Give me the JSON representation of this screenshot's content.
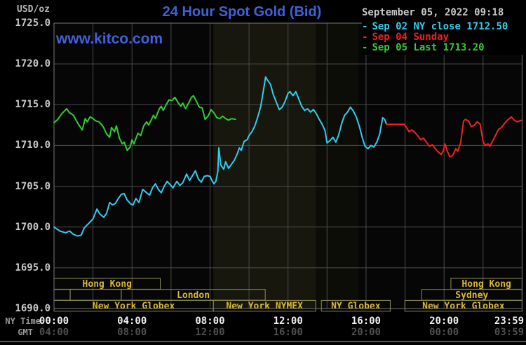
{
  "header": {
    "units_label": "USD/oz",
    "title": "24 Hour Spot Gold (Bid)",
    "watermark": "www.kitco.com"
  },
  "legend": {
    "timestamp": "September 05, 2022 09:18",
    "items": [
      {
        "marker": "-",
        "label": "Sep 02 NY close 1712.50",
        "color": "#33ccee"
      },
      {
        "marker": "-",
        "label": "Sep 04 Sunday",
        "color": "#ee2222"
      },
      {
        "marker": "-",
        "label": "Sep 05 Last 1713.20",
        "color": "#33cc33"
      }
    ]
  },
  "axis": {
    "ny_label": "NY Time",
    "gmt_label": "GMT",
    "y_ticks": [
      "1725.0",
      "1720.0",
      "1715.0",
      "1710.0",
      "1705.0",
      "1700.0",
      "1695.0",
      "1690.0"
    ],
    "y_tick_values": [
      1725,
      1720,
      1715,
      1710,
      1705,
      1700,
      1695,
      1690
    ],
    "x_ticks": [
      {
        "hour": 0,
        "ny": "00:00",
        "gmt": "04:00"
      },
      {
        "hour": 4,
        "ny": "04:00",
        "gmt": "08:00"
      },
      {
        "hour": 8,
        "ny": "08:00",
        "gmt": "12:00"
      },
      {
        "hour": 12,
        "ny": "12:00",
        "gmt": "16:00"
      },
      {
        "hour": 16,
        "ny": "16:00",
        "gmt": "20:00"
      },
      {
        "hour": 20,
        "ny": "20:00",
        "gmt": "00:00"
      },
      {
        "hour": 23.983,
        "ny": "23:59",
        "gmt": "03:59"
      }
    ]
  },
  "colors": {
    "title_blue": "#4161dd",
    "grid": "#4b4b4b",
    "plot_border": "#787878",
    "session_border": "#8e8e55",
    "session_text": "#d9b832",
    "nymex_band": "#17170e",
    "after_band": "#0d0d08"
  },
  "chart_data": {
    "type": "line",
    "title": "24 Hour Spot Gold (Bid)",
    "xlabel": "NY Time (00:00 - 23:59)",
    "ylabel": "USD/oz",
    "ylim": [
      1690,
      1725
    ],
    "xlim_hours": [
      0,
      24
    ],
    "grid": true,
    "legend_position": "top-right",
    "series": [
      {
        "name": "Sep 02 NY close 1712.50",
        "color": "#33ccee",
        "points": [
          [
            0.0,
            1700.0
          ],
          [
            0.3,
            1699.5
          ],
          [
            0.6,
            1699.3
          ],
          [
            0.8,
            1699.5
          ],
          [
            1.0,
            1699.1
          ],
          [
            1.2,
            1698.9
          ],
          [
            1.4,
            1699.0
          ],
          [
            1.55,
            1699.9
          ],
          [
            1.8,
            1700.5
          ],
          [
            2.0,
            1701.0
          ],
          [
            2.2,
            1702.2
          ],
          [
            2.35,
            1701.6
          ],
          [
            2.55,
            1701.2
          ],
          [
            2.7,
            1701.7
          ],
          [
            2.85,
            1703.0
          ],
          [
            3.0,
            1702.7
          ],
          [
            3.15,
            1702.9
          ],
          [
            3.3,
            1703.5
          ],
          [
            3.45,
            1704.0
          ],
          [
            3.6,
            1704.1
          ],
          [
            3.75,
            1703.3
          ],
          [
            3.95,
            1702.8
          ],
          [
            4.05,
            1702.7
          ],
          [
            4.2,
            1703.5
          ],
          [
            4.35,
            1703.0
          ],
          [
            4.55,
            1704.6
          ],
          [
            4.7,
            1704.3
          ],
          [
            4.9,
            1703.9
          ],
          [
            5.05,
            1704.8
          ],
          [
            5.2,
            1705.3
          ],
          [
            5.35,
            1704.6
          ],
          [
            5.5,
            1704.2
          ],
          [
            5.65,
            1705.0
          ],
          [
            5.8,
            1705.6
          ],
          [
            5.95,
            1705.2
          ],
          [
            6.1,
            1704.8
          ],
          [
            6.3,
            1705.6
          ],
          [
            6.45,
            1705.1
          ],
          [
            6.6,
            1705.4
          ],
          [
            6.8,
            1706.5
          ],
          [
            6.95,
            1705.7
          ],
          [
            7.1,
            1706.3
          ],
          [
            7.25,
            1706.9
          ],
          [
            7.4,
            1705.9
          ],
          [
            7.55,
            1705.5
          ],
          [
            7.7,
            1706.2
          ],
          [
            7.85,
            1706.3
          ],
          [
            8.0,
            1706.2
          ],
          [
            8.1,
            1705.7
          ],
          [
            8.2,
            1705.3
          ],
          [
            8.3,
            1705.6
          ],
          [
            8.4,
            1706.8
          ],
          [
            8.45,
            1709.7
          ],
          [
            8.55,
            1707.6
          ],
          [
            8.7,
            1707.1
          ],
          [
            8.8,
            1708.0
          ],
          [
            8.95,
            1707.2
          ],
          [
            9.1,
            1707.7
          ],
          [
            9.25,
            1708.2
          ],
          [
            9.4,
            1709.0
          ],
          [
            9.5,
            1709.7
          ],
          [
            9.6,
            1709.4
          ],
          [
            9.75,
            1710.5
          ],
          [
            9.9,
            1710.7
          ],
          [
            10.0,
            1711.2
          ],
          [
            10.15,
            1711.7
          ],
          [
            10.3,
            1712.4
          ],
          [
            10.45,
            1713.5
          ],
          [
            10.6,
            1714.8
          ],
          [
            10.75,
            1716.9
          ],
          [
            10.85,
            1718.4
          ],
          [
            10.95,
            1718.0
          ],
          [
            11.1,
            1717.5
          ],
          [
            11.25,
            1716.2
          ],
          [
            11.4,
            1715.3
          ],
          [
            11.55,
            1714.4
          ],
          [
            11.7,
            1714.7
          ],
          [
            11.85,
            1715.4
          ],
          [
            12.0,
            1716.4
          ],
          [
            12.1,
            1716.6
          ],
          [
            12.25,
            1716.1
          ],
          [
            12.4,
            1716.6
          ],
          [
            12.55,
            1715.7
          ],
          [
            12.7,
            1714.8
          ],
          [
            12.85,
            1714.3
          ],
          [
            13.0,
            1714.5
          ],
          [
            13.15,
            1714.1
          ],
          [
            13.3,
            1714.4
          ],
          [
            13.45,
            1713.9
          ],
          [
            13.6,
            1713.2
          ],
          [
            13.75,
            1712.6
          ],
          [
            13.9,
            1711.8
          ],
          [
            14.0,
            1710.3
          ],
          [
            14.15,
            1710.6
          ],
          [
            14.3,
            1711.0
          ],
          [
            14.45,
            1710.4
          ],
          [
            14.6,
            1711.3
          ],
          [
            14.75,
            1712.7
          ],
          [
            14.9,
            1713.7
          ],
          [
            15.05,
            1714.1
          ],
          [
            15.2,
            1714.7
          ],
          [
            15.35,
            1714.2
          ],
          [
            15.5,
            1713.5
          ],
          [
            15.65,
            1712.4
          ],
          [
            15.8,
            1711.0
          ],
          [
            15.95,
            1709.9
          ],
          [
            16.1,
            1709.6
          ],
          [
            16.25,
            1710.0
          ],
          [
            16.4,
            1709.8
          ],
          [
            16.55,
            1710.4
          ],
          [
            16.7,
            1711.4
          ],
          [
            16.85,
            1713.4
          ],
          [
            16.95,
            1713.2
          ],
          [
            17.05,
            1712.6
          ]
        ]
      },
      {
        "name": "Sep 04 Sunday",
        "color": "#ee2222",
        "points": [
          [
            17.05,
            1712.6
          ],
          [
            17.35,
            1712.6
          ],
          [
            17.65,
            1712.6
          ],
          [
            17.95,
            1712.6
          ],
          [
            18.05,
            1712.3
          ],
          [
            18.2,
            1711.7
          ],
          [
            18.35,
            1711.9
          ],
          [
            18.5,
            1711.6
          ],
          [
            18.65,
            1711.2
          ],
          [
            18.8,
            1710.7
          ],
          [
            18.95,
            1710.9
          ],
          [
            19.1,
            1710.4
          ],
          [
            19.25,
            1709.9
          ],
          [
            19.4,
            1710.1
          ],
          [
            19.55,
            1709.6
          ],
          [
            19.7,
            1709.2
          ],
          [
            19.85,
            1708.9
          ],
          [
            19.95,
            1709.3
          ],
          [
            20.05,
            1710.2
          ],
          [
            20.15,
            1709.4
          ],
          [
            20.3,
            1708.6
          ],
          [
            20.45,
            1708.8
          ],
          [
            20.6,
            1709.6
          ],
          [
            20.7,
            1709.3
          ],
          [
            20.85,
            1710.3
          ],
          [
            21.0,
            1713.0
          ],
          [
            21.1,
            1713.2
          ],
          [
            21.25,
            1713.0
          ],
          [
            21.4,
            1712.3
          ],
          [
            21.55,
            1712.5
          ],
          [
            21.7,
            1712.9
          ],
          [
            21.85,
            1712.6
          ],
          [
            22.0,
            1710.5
          ],
          [
            22.1,
            1710.0
          ],
          [
            22.25,
            1710.2
          ],
          [
            22.35,
            1709.9
          ],
          [
            22.5,
            1710.6
          ],
          [
            22.65,
            1711.3
          ],
          [
            22.8,
            1712.0
          ],
          [
            22.95,
            1712.2
          ],
          [
            23.1,
            1712.7
          ],
          [
            23.25,
            1713.1
          ],
          [
            23.45,
            1713.5
          ],
          [
            23.6,
            1713.1
          ],
          [
            23.75,
            1712.9
          ],
          [
            23.98,
            1713.1
          ]
        ]
      },
      {
        "name": "Sep 05 Last 1713.20",
        "color": "#33cc33",
        "points": [
          [
            0.0,
            1712.8
          ],
          [
            0.2,
            1713.2
          ],
          [
            0.4,
            1713.9
          ],
          [
            0.65,
            1714.5
          ],
          [
            0.8,
            1714.0
          ],
          [
            1.0,
            1713.7
          ],
          [
            1.2,
            1712.8
          ],
          [
            1.45,
            1711.9
          ],
          [
            1.6,
            1713.3
          ],
          [
            1.7,
            1712.9
          ],
          [
            1.85,
            1713.5
          ],
          [
            2.0,
            1713.3
          ],
          [
            2.15,
            1713.0
          ],
          [
            2.3,
            1712.9
          ],
          [
            2.5,
            1712.4
          ],
          [
            2.7,
            1711.4
          ],
          [
            2.85,
            1711.0
          ],
          [
            2.95,
            1712.2
          ],
          [
            3.1,
            1711.7
          ],
          [
            3.2,
            1712.4
          ],
          [
            3.35,
            1710.9
          ],
          [
            3.5,
            1710.2
          ],
          [
            3.6,
            1710.4
          ],
          [
            3.75,
            1709.4
          ],
          [
            3.9,
            1709.8
          ],
          [
            4.0,
            1710.7
          ],
          [
            4.1,
            1710.2
          ],
          [
            4.3,
            1711.5
          ],
          [
            4.45,
            1711.2
          ],
          [
            4.6,
            1712.4
          ],
          [
            4.75,
            1712.9
          ],
          [
            4.85,
            1712.5
          ],
          [
            5.0,
            1713.2
          ],
          [
            5.1,
            1713.7
          ],
          [
            5.2,
            1713.3
          ],
          [
            5.4,
            1714.5
          ],
          [
            5.5,
            1714.8
          ],
          [
            5.6,
            1714.3
          ],
          [
            5.75,
            1715.0
          ],
          [
            5.9,
            1715.6
          ],
          [
            6.05,
            1715.5
          ],
          [
            6.2,
            1715.9
          ],
          [
            6.35,
            1715.3
          ],
          [
            6.5,
            1714.8
          ],
          [
            6.6,
            1715.2
          ],
          [
            6.75,
            1714.5
          ],
          [
            6.9,
            1715.2
          ],
          [
            7.05,
            1715.9
          ],
          [
            7.15,
            1716.1
          ],
          [
            7.3,
            1715.4
          ],
          [
            7.45,
            1714.7
          ],
          [
            7.6,
            1714.6
          ],
          [
            7.75,
            1713.2
          ],
          [
            7.9,
            1713.6
          ],
          [
            8.05,
            1714.4
          ],
          [
            8.2,
            1714.0
          ],
          [
            8.35,
            1713.4
          ],
          [
            8.5,
            1713.3
          ],
          [
            8.65,
            1713.6
          ],
          [
            8.8,
            1713.3
          ],
          [
            8.95,
            1713.1
          ],
          [
            9.1,
            1713.3
          ],
          [
            9.3,
            1713.2
          ]
        ]
      }
    ],
    "sessions": [
      {
        "row": 0,
        "label": "Hong Kong",
        "start": 0,
        "end": 5.45
      },
      {
        "row": 0,
        "label": "Hong Kong",
        "start": 20.35,
        "end": 24
      },
      {
        "row": 1,
        "label": "",
        "start": 0,
        "end": 0.83
      },
      {
        "row": 1,
        "label": "",
        "start": 0.83,
        "end": 3.45
      },
      {
        "row": 1,
        "label": "London",
        "start": 3.45,
        "end": 10.83
      },
      {
        "row": 1,
        "label": "Sydney",
        "start": 18.85,
        "end": 24
      },
      {
        "row": 2,
        "label": "New York Globex",
        "start": 0,
        "end": 8.17
      },
      {
        "row": 2,
        "label": "New York NYMEX",
        "start": 8.17,
        "end": 13.42
      },
      {
        "row": 2,
        "label": "NY Globex",
        "start": 13.71,
        "end": 17.24
      },
      {
        "row": 2,
        "label": "New York Globex",
        "start": 17.99,
        "end": 24
      }
    ],
    "highlight_bands": [
      {
        "start": 8.17,
        "end": 13.42,
        "color": "#17170e"
      },
      {
        "start": 13.42,
        "end": 15.6,
        "color": "#0d0d08"
      }
    ]
  }
}
